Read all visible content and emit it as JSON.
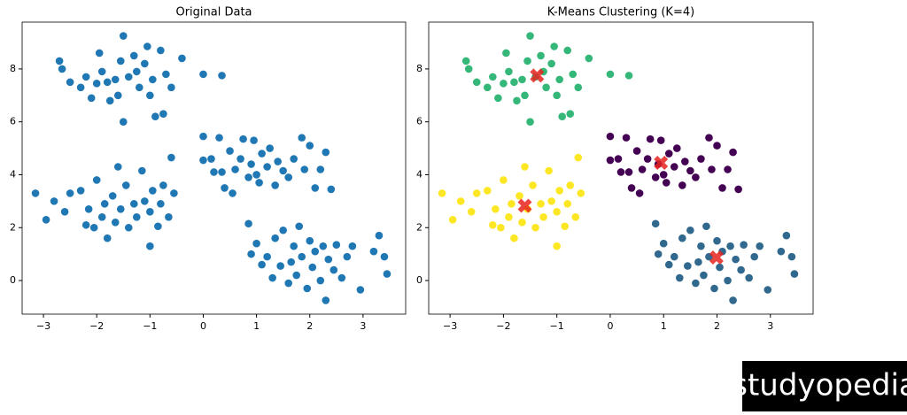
{
  "chart_data": [
    {
      "type": "scatter",
      "title": "Original Data",
      "xlim": [
        -3.4,
        3.8
      ],
      "ylim": [
        -1.27,
        9.77
      ],
      "xticks": [
        {
          "value": -3,
          "label": "−3"
        },
        {
          "value": -2,
          "label": "−2"
        },
        {
          "value": -1,
          "label": "−1"
        },
        0,
        1,
        2,
        3
      ],
      "yticks": [
        0,
        2,
        4,
        6,
        8
      ],
      "series": [
        {
          "color": "#1f77b4",
          "x": [
            -2.7,
            -2.65,
            -2.5,
            -2.3,
            -2.2,
            -2.0,
            -1.95,
            -1.9,
            -1.8,
            -1.75,
            -1.6,
            -1.55,
            -1.5,
            -1.5,
            -1.4,
            -1.3,
            -1.25,
            -1.2,
            -1.1,
            -1.05,
            -1.0,
            -0.95,
            -0.9,
            -0.8,
            -0.75,
            -0.7,
            -0.6,
            -0.4,
            0.0,
            0.35,
            -2.1,
            -1.65
          ],
          "values": [
            8.3,
            8.0,
            7.5,
            7.3,
            7.7,
            7.45,
            8.6,
            7.9,
            7.5,
            6.8,
            7.0,
            8.3,
            9.25,
            6.0,
            7.7,
            8.5,
            7.9,
            7.3,
            8.2,
            8.85,
            7.0,
            7.6,
            6.2,
            8.7,
            6.3,
            7.8,
            7.3,
            8.4,
            7.8,
            7.75,
            6.9,
            7.6
          ]
        },
        {
          "color": "#1f77b4",
          "x": [
            0.0,
            0.0,
            0.15,
            0.3,
            0.35,
            0.4,
            0.5,
            0.55,
            0.6,
            0.7,
            0.75,
            0.85,
            0.9,
            0.95,
            1.0,
            1.05,
            1.1,
            1.2,
            1.25,
            1.35,
            1.4,
            1.5,
            1.6,
            1.7,
            1.85,
            1.9,
            2.0,
            2.1,
            2.2,
            2.3,
            2.4,
            0.2
          ],
          "values": [
            5.45,
            4.55,
            4.6,
            5.4,
            4.1,
            3.5,
            4.9,
            3.3,
            4.2,
            4.6,
            5.35,
            3.9,
            4.4,
            5.3,
            4.0,
            3.7,
            4.8,
            4.3,
            5.0,
            3.6,
            4.5,
            4.15,
            3.9,
            4.6,
            5.4,
            4.2,
            5.1,
            3.5,
            4.2,
            4.85,
            3.45,
            4.1
          ]
        },
        {
          "color": "#1f77b4",
          "x": [
            0.85,
            0.9,
            1.0,
            1.1,
            1.2,
            1.3,
            1.35,
            1.45,
            1.5,
            1.6,
            1.65,
            1.7,
            1.75,
            1.8,
            1.85,
            1.95,
            2.0,
            2.05,
            2.1,
            2.2,
            2.25,
            2.3,
            2.35,
            2.45,
            2.5,
            2.6,
            2.7,
            2.8,
            2.95,
            3.2,
            3.3,
            3.4,
            3.45
          ],
          "values": [
            2.15,
            1.0,
            1.4,
            0.6,
            0.9,
            0.1,
            1.6,
            0.55,
            1.9,
            -0.1,
            0.7,
            1.3,
            0.2,
            2.05,
            0.9,
            -0.3,
            1.5,
            0.5,
            1.1,
            0.0,
            1.3,
            -0.75,
            0.8,
            0.4,
            1.35,
            0.1,
            0.9,
            1.3,
            -0.35,
            1.1,
            1.7,
            0.9,
            0.25
          ]
        },
        {
          "color": "#1f77b4",
          "x": [
            -3.15,
            -2.95,
            -2.8,
            -2.6,
            -2.5,
            -2.3,
            -2.15,
            -2.05,
            -2.0,
            -1.9,
            -1.85,
            -1.8,
            -1.7,
            -1.65,
            -1.6,
            -1.55,
            -1.45,
            -1.4,
            -1.3,
            -1.25,
            -1.15,
            -1.1,
            -1.0,
            -0.95,
            -0.85,
            -0.8,
            -0.75,
            -0.65,
            -0.6,
            -0.55,
            -1.0,
            -2.2
          ],
          "values": [
            3.3,
            2.3,
            3.0,
            2.6,
            3.3,
            3.4,
            2.7,
            2.0,
            3.8,
            2.4,
            2.9,
            1.6,
            3.2,
            2.2,
            4.3,
            2.7,
            3.6,
            2.0,
            2.9,
            2.4,
            4.15,
            3.0,
            2.6,
            3.4,
            2.05,
            2.9,
            3.6,
            2.4,
            4.65,
            3.3,
            1.3,
            2.1
          ]
        }
      ]
    },
    {
      "type": "scatter",
      "title": "K-Means Clustering (K=4)",
      "xlim": [
        -3.4,
        3.8
      ],
      "ylim": [
        -1.27,
        9.77
      ],
      "xticks": [
        {
          "value": -3,
          "label": "−3"
        },
        {
          "value": -2,
          "label": "−2"
        },
        {
          "value": -1,
          "label": "−1"
        },
        0,
        1,
        2,
        3
      ],
      "yticks": [
        0,
        2,
        4,
        6,
        8
      ],
      "series": [
        {
          "color": "#35b779",
          "x": [
            -2.7,
            -2.65,
            -2.5,
            -2.3,
            -2.2,
            -2.0,
            -1.95,
            -1.9,
            -1.8,
            -1.75,
            -1.6,
            -1.55,
            -1.5,
            -1.5,
            -1.4,
            -1.3,
            -1.25,
            -1.2,
            -1.1,
            -1.05,
            -1.0,
            -0.95,
            -0.9,
            -0.8,
            -0.75,
            -0.7,
            -0.6,
            -0.4,
            0.0,
            0.35,
            -2.1,
            -1.65
          ],
          "values": [
            8.3,
            8.0,
            7.5,
            7.3,
            7.7,
            7.45,
            8.6,
            7.9,
            7.5,
            6.8,
            7.0,
            8.3,
            9.25,
            6.0,
            7.7,
            8.5,
            7.9,
            7.3,
            8.2,
            8.85,
            7.0,
            7.6,
            6.2,
            8.7,
            6.3,
            7.8,
            7.3,
            8.4,
            7.8,
            7.75,
            6.9,
            7.6
          ]
        },
        {
          "color": "#440154",
          "x": [
            0.0,
            0.0,
            0.15,
            0.3,
            0.35,
            0.4,
            0.5,
            0.55,
            0.6,
            0.7,
            0.75,
            0.85,
            0.9,
            0.95,
            1.0,
            1.05,
            1.1,
            1.2,
            1.25,
            1.35,
            1.4,
            1.5,
            1.6,
            1.7,
            1.85,
            1.9,
            2.0,
            2.1,
            2.2,
            2.3,
            2.4,
            0.2
          ],
          "values": [
            5.45,
            4.55,
            4.6,
            5.4,
            4.1,
            3.5,
            4.9,
            3.3,
            4.2,
            4.6,
            5.35,
            3.9,
            4.4,
            5.3,
            4.0,
            3.7,
            4.8,
            4.3,
            5.0,
            3.6,
            4.5,
            4.15,
            3.9,
            4.6,
            5.4,
            4.2,
            5.1,
            3.5,
            4.2,
            4.85,
            3.45,
            4.1
          ]
        },
        {
          "color": "#31688e",
          "x": [
            0.85,
            0.9,
            1.0,
            1.1,
            1.2,
            1.3,
            1.35,
            1.45,
            1.5,
            1.6,
            1.65,
            1.7,
            1.75,
            1.8,
            1.85,
            1.95,
            2.0,
            2.05,
            2.1,
            2.2,
            2.25,
            2.3,
            2.35,
            2.45,
            2.5,
            2.6,
            2.7,
            2.8,
            2.95,
            3.2,
            3.3,
            3.4,
            3.45
          ],
          "values": [
            2.15,
            1.0,
            1.4,
            0.6,
            0.9,
            0.1,
            1.6,
            0.55,
            1.9,
            -0.1,
            0.7,
            1.3,
            0.2,
            2.05,
            0.9,
            -0.3,
            1.5,
            0.5,
            1.1,
            0.0,
            1.3,
            -0.75,
            0.8,
            0.4,
            1.35,
            0.1,
            0.9,
            1.3,
            -0.35,
            1.1,
            1.7,
            0.9,
            0.25
          ]
        },
        {
          "color": "#fde725",
          "x": [
            -3.15,
            -2.95,
            -2.8,
            -2.6,
            -2.5,
            -2.3,
            -2.15,
            -2.05,
            -2.0,
            -1.9,
            -1.85,
            -1.8,
            -1.7,
            -1.65,
            -1.6,
            -1.55,
            -1.45,
            -1.4,
            -1.3,
            -1.25,
            -1.15,
            -1.1,
            -1.0,
            -0.95,
            -0.85,
            -0.8,
            -0.75,
            -0.65,
            -0.6,
            -0.55,
            -1.0,
            -2.2
          ],
          "values": [
            3.3,
            2.3,
            3.0,
            2.6,
            3.3,
            3.4,
            2.7,
            2.0,
            3.8,
            2.4,
            2.9,
            1.6,
            3.2,
            2.2,
            4.3,
            2.7,
            3.6,
            2.0,
            2.9,
            2.4,
            4.15,
            3.0,
            2.6,
            3.4,
            2.05,
            2.9,
            3.6,
            2.4,
            4.65,
            3.3,
            1.3,
            2.1
          ]
        },
        {
          "color": "#e8231e",
          "marker": "X",
          "x": [
            -1.37,
            0.95,
            1.99,
            -1.6
          ],
          "values": [
            7.75,
            4.45,
            0.87,
            2.83
          ]
        }
      ]
    }
  ],
  "watermark": "studyopedia"
}
